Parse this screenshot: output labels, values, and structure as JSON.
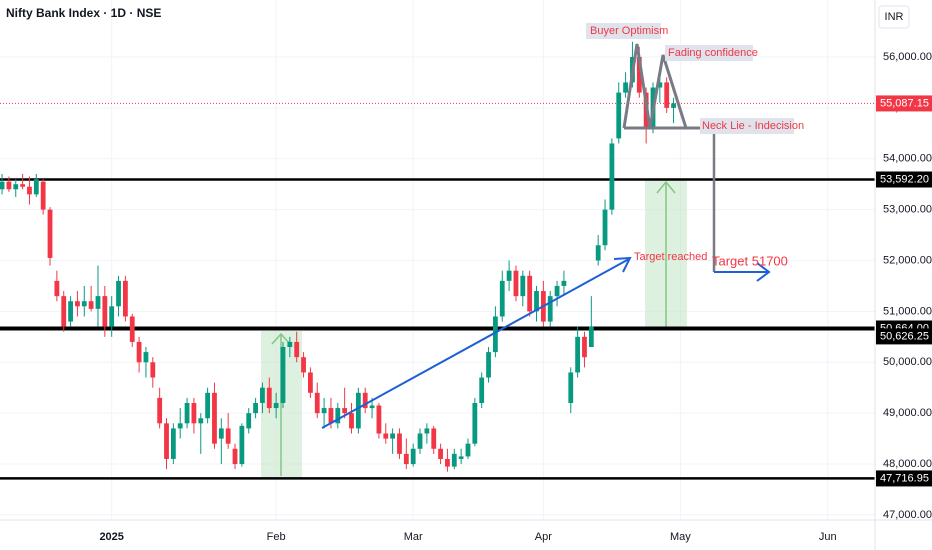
{
  "chart_data": {
    "type": "candlestick",
    "title": "Nifty Bank Index · 1D · NSE",
    "currency": "INR",
    "up_color": "#089981",
    "down_color": "#f23645",
    "xlim": [
      -0.3,
      127.4
    ],
    "ylim": [
      46900,
      57120
    ],
    "xticks": [
      {
        "value": 16,
        "label": "2025"
      },
      {
        "value": 40,
        "label": "Feb"
      },
      {
        "value": 60,
        "label": "Mar"
      },
      {
        "value": 79,
        "label": "Apr"
      },
      {
        "value": 99,
        "label": "May"
      },
      {
        "value": 120.5,
        "label": "Jun"
      }
    ],
    "yticks": [
      {
        "value": 47000,
        "label": "47,000.00"
      },
      {
        "value": 48000,
        "label": "48,000.00"
      },
      {
        "value": 49000,
        "label": "49,000.00"
      },
      {
        "value": 50000,
        "label": "50,000.00"
      },
      {
        "value": 51000,
        "label": "51,000.00"
      },
      {
        "value": 52000,
        "label": "52,000.00"
      },
      {
        "value": 53000,
        "label": "53,000.00"
      },
      {
        "value": 54000,
        "label": "54,000.00"
      },
      {
        "value": 55000,
        "label": "55,000.00"
      },
      {
        "value": 56000,
        "label": "56,000.00"
      }
    ],
    "levels": [
      {
        "value": 53592.2,
        "label": "53,592.20",
        "width": 2.5
      },
      {
        "value": 50664,
        "label": "50,664.00",
        "width": 4
      },
      {
        "value": 47716.95,
        "label": "47,716.95",
        "width": 2.5
      }
    ],
    "secondary_level": {
      "value": 50626.25,
      "label": "50,626.25"
    },
    "last_price": {
      "value": 55087.15,
      "label": "55,087.15",
      "color": "#f23645"
    },
    "annotations": {
      "buyer": "Buyer Optimism",
      "fading": "Fading confidence",
      "neck": "Neck Lie - Indecision",
      "reached": "Target reached",
      "target": "Target 51700"
    },
    "candles": [
      [
        53400,
        53700,
        53300,
        53550
      ],
      [
        53550,
        53650,
        53350,
        53400
      ],
      [
        53400,
        53600,
        53250,
        53500
      ],
      [
        53500,
        53700,
        53400,
        53450
      ],
      [
        53450,
        53650,
        53100,
        53300
      ],
      [
        53300,
        53700,
        53250,
        53600
      ],
      [
        53550,
        53600,
        52900,
        53000
      ],
      [
        53000,
        53050,
        51900,
        52050
      ],
      [
        51600,
        51800,
        51200,
        51300
      ],
      [
        51300,
        51400,
        50600,
        50700
      ],
      [
        50800,
        51300,
        50700,
        51200
      ],
      [
        51200,
        51400,
        50900,
        51100
      ],
      [
        51100,
        51500,
        50900,
        51200
      ],
      [
        51200,
        51500,
        51000,
        51050
      ],
      [
        51050,
        51900,
        50700,
        51300
      ],
      [
        51300,
        51500,
        50500,
        50700
      ],
      [
        50700,
        51300,
        50500,
        51100
      ],
      [
        51100,
        51700,
        50900,
        51600
      ],
      [
        51600,
        51700,
        50800,
        50900
      ],
      [
        50900,
        50950,
        50300,
        50400
      ],
      [
        50400,
        50500,
        49800,
        50000
      ],
      [
        50000,
        50300,
        49700,
        50200
      ],
      [
        50000,
        50100,
        49500,
        49700
      ],
      [
        49300,
        49500,
        48700,
        48800
      ],
      [
        48800,
        48900,
        47900,
        48100
      ],
      [
        48100,
        48800,
        48000,
        48700
      ],
      [
        48700,
        49100,
        48500,
        48800
      ],
      [
        48800,
        49300,
        48700,
        49200
      ],
      [
        49200,
        49300,
        48600,
        48800
      ],
      [
        48800,
        49000,
        48200,
        48900
      ],
      [
        48900,
        49500,
        48800,
        49400
      ],
      [
        49400,
        49600,
        48300,
        48400
      ],
      [
        48500,
        48900,
        48000,
        48700
      ],
      [
        48700,
        49000,
        48300,
        48400
      ],
      [
        48300,
        48400,
        47900,
        48000
      ],
      [
        48000,
        48800,
        47950,
        48750
      ],
      [
        48700,
        49100,
        48600,
        49000
      ],
      [
        49000,
        49300,
        48900,
        49200
      ],
      [
        49200,
        49600,
        49000,
        49500
      ],
      [
        49500,
        49700,
        49000,
        49100
      ],
      [
        49100,
        49400,
        48900,
        49200
      ],
      [
        49200,
        50400,
        49100,
        50300
      ],
      [
        50300,
        50500,
        50100,
        50400
      ],
      [
        50400,
        50600,
        50000,
        50100
      ],
      [
        50100,
        50200,
        49700,
        49800
      ],
      [
        49800,
        49900,
        49300,
        49400
      ],
      [
        49400,
        49600,
        48900,
        49000
      ],
      [
        49000,
        49300,
        48700,
        49100
      ],
      [
        49100,
        49300,
        48700,
        48800
      ],
      [
        48800,
        49200,
        48700,
        49100
      ],
      [
        49100,
        49500,
        48900,
        49000
      ],
      [
        49000,
        49200,
        48600,
        48700
      ],
      [
        48700,
        49500,
        48600,
        49400
      ],
      [
        49400,
        49500,
        49000,
        49100
      ],
      [
        49100,
        49300,
        48900,
        49150
      ],
      [
        49150,
        49200,
        48500,
        48600
      ],
      [
        48600,
        48800,
        48400,
        48500
      ],
      [
        48500,
        48700,
        48200,
        48600
      ],
      [
        48600,
        48700,
        48100,
        48200
      ],
      [
        48200,
        48500,
        47900,
        48000
      ],
      [
        48000,
        48400,
        47950,
        48300
      ],
      [
        48300,
        48700,
        48200,
        48600
      ],
      [
        48600,
        48800,
        48400,
        48700
      ],
      [
        48700,
        48750,
        48200,
        48300
      ],
      [
        48300,
        48400,
        48000,
        48100
      ],
      [
        48100,
        48300,
        47850,
        47950
      ],
      [
        47950,
        48300,
        47900,
        48200
      ],
      [
        48100,
        48300,
        48000,
        48150
      ],
      [
        48150,
        48500,
        48100,
        48400
      ],
      [
        48400,
        49300,
        48350,
        49200
      ],
      [
        49200,
        49800,
        49100,
        49700
      ],
      [
        49700,
        50300,
        49600,
        50200
      ],
      [
        50200,
        51100,
        50100,
        50900
      ],
      [
        50900,
        51800,
        50800,
        51600
      ],
      [
        51600,
        52000,
        51400,
        51800
      ],
      [
        51800,
        51900,
        51200,
        51300
      ],
      [
        51300,
        51800,
        51100,
        51700
      ],
      [
        51700,
        51800,
        50900,
        51000
      ],
      [
        51000,
        51500,
        50800,
        51400
      ],
      [
        51400,
        51600,
        50700,
        50800
      ],
      [
        50800,
        51400,
        50700,
        51300
      ],
      [
        51300,
        51600,
        51100,
        51500
      ],
      [
        51500,
        51800,
        51300,
        51600
      ],
      [
        49200,
        49900,
        49000,
        49800
      ],
      [
        49800,
        50700,
        49700,
        50500
      ],
      [
        50500,
        50600,
        49900,
        50100
      ],
      [
        50300,
        51300,
        50300,
        50700
      ],
      [
        52000,
        52500,
        51900,
        52300
      ],
      [
        52300,
        53200,
        52200,
        53000
      ],
      [
        53000,
        54400,
        52900,
        54300
      ],
      [
        54400,
        55500,
        54300,
        55300
      ],
      [
        55300,
        55700,
        55200,
        55500
      ],
      [
        55500,
        56300,
        55400,
        56000
      ],
      [
        56000,
        56200,
        55200,
        55300
      ],
      [
        55300,
        55400,
        54300,
        54600
      ],
      [
        54600,
        55500,
        54500,
        55400
      ],
      [
        55400,
        55700,
        55100,
        55500
      ],
      [
        55500,
        55600,
        54900,
        55000
      ],
      [
        55000,
        55200,
        54700,
        55087.15
      ]
    ]
  }
}
